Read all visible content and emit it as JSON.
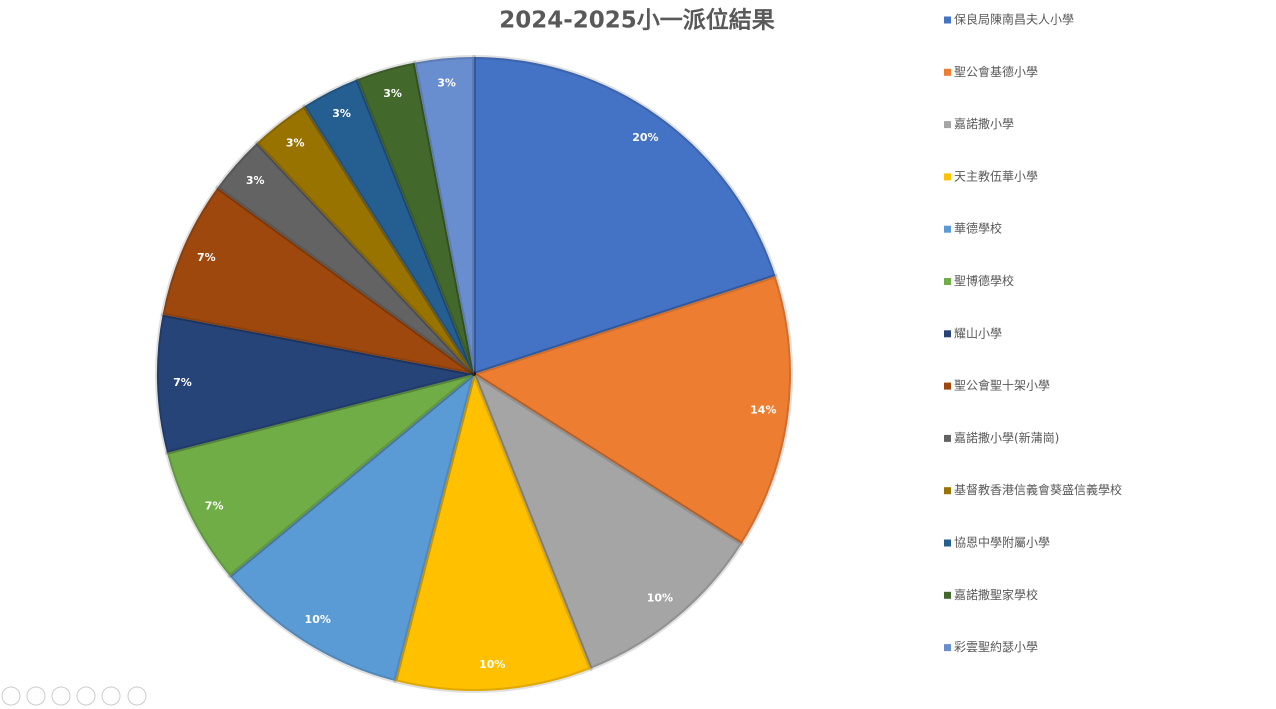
{
  "chart_data": {
    "type": "pie",
    "title": "2024-2025小一派位結果",
    "categories": [
      "保良局陳南昌夫人小學",
      "聖公會基德小學",
      "嘉諾撒小學",
      "天主教伍華小學",
      "華德學校",
      "聖博德學校",
      "耀山小學",
      "聖公會聖十架小學",
      "嘉諾撒小學(新蒲崗)",
      "基督教香港信義會葵盛信義學校",
      "協恩中學附屬小學",
      "嘉諾撒聖家學校",
      "彩雲聖約瑟小學"
    ],
    "values": [
      20,
      14,
      10,
      10,
      10,
      7,
      7,
      7,
      3,
      3,
      3,
      3,
      3
    ],
    "value_labels": [
      "20%",
      "14%",
      "10%",
      "10%",
      "10%",
      "7%",
      "7%",
      "7%",
      "3%",
      "3%",
      "3%",
      "3%",
      "3%"
    ],
    "colors": [
      "#4472c4",
      "#ed7d31",
      "#a5a5a5",
      "#ffc000",
      "#5b9bd5",
      "#70ad47",
      "#264478",
      "#9e480e",
      "#636363",
      "#997300",
      "#255e91",
      "#43682b",
      "#698ed0"
    ],
    "legend": "right"
  }
}
